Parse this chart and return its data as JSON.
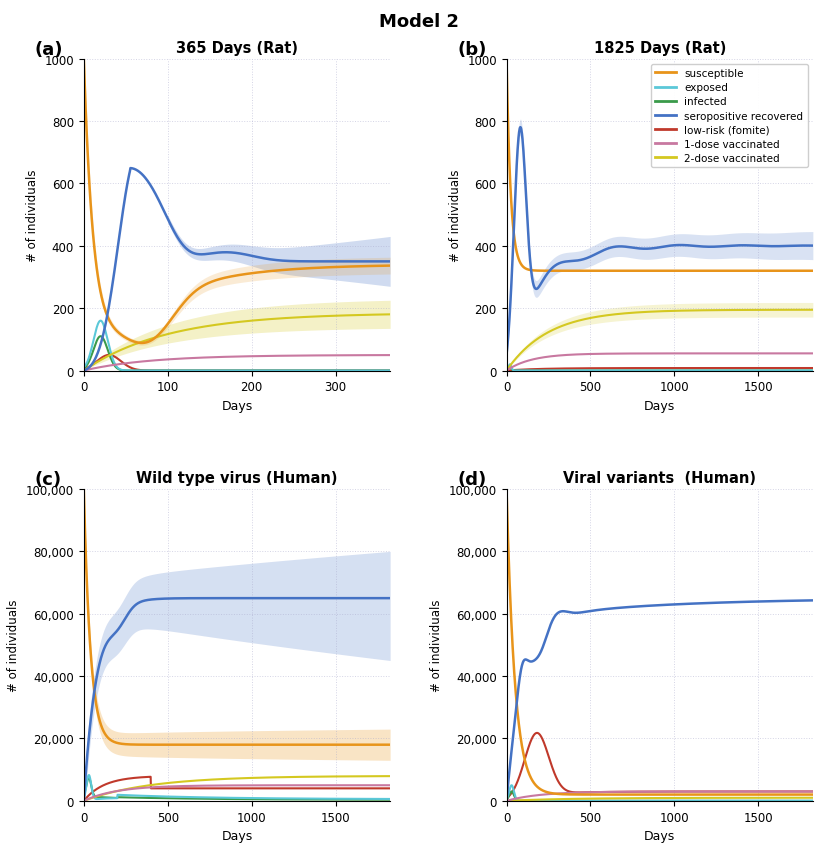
{
  "title": "Model 2",
  "panels": [
    {
      "label": "(a)",
      "title": "365 Days (Rat)",
      "xlim": [
        0,
        365
      ],
      "ylim": [
        0,
        1000
      ],
      "xticks": [
        0,
        100,
        200,
        300
      ],
      "yticks": [
        0,
        200,
        400,
        600,
        800,
        1000
      ]
    },
    {
      "label": "(b)",
      "title": "1825 Days (Rat)",
      "xlim": [
        0,
        1825
      ],
      "ylim": [
        0,
        1000
      ],
      "xticks": [
        0,
        500,
        1000,
        1500
      ],
      "yticks": [
        0,
        200,
        400,
        600,
        800,
        1000
      ]
    },
    {
      "label": "(c)",
      "title": "Wild type virus (Human)",
      "xlim": [
        0,
        1825
      ],
      "ylim": [
        0,
        100000
      ],
      "xticks": [
        0,
        500,
        1000,
        1500
      ],
      "yticks": [
        0,
        20000,
        40000,
        60000,
        80000,
        100000
      ]
    },
    {
      "label": "(d)",
      "title": "Viral variants  (Human)",
      "xlim": [
        0,
        1825
      ],
      "ylim": [
        0,
        100000
      ],
      "xticks": [
        0,
        500,
        1000,
        1500
      ],
      "yticks": [
        0,
        20000,
        40000,
        60000,
        80000,
        100000
      ]
    }
  ],
  "colors": {
    "susceptible": "#E8941A",
    "exposed": "#5BC8D8",
    "infected": "#3A9A4A",
    "seropositive": "#4472C4",
    "lowrisk": "#C0392B",
    "dose1": "#C878A0",
    "dose2": "#D4C820"
  },
  "legend_labels": [
    "susceptible",
    "exposed",
    "infected",
    "seropositive recovered",
    "low-risk (fomite)",
    "1-dose vaccinated",
    "2-dose vaccinated"
  ]
}
